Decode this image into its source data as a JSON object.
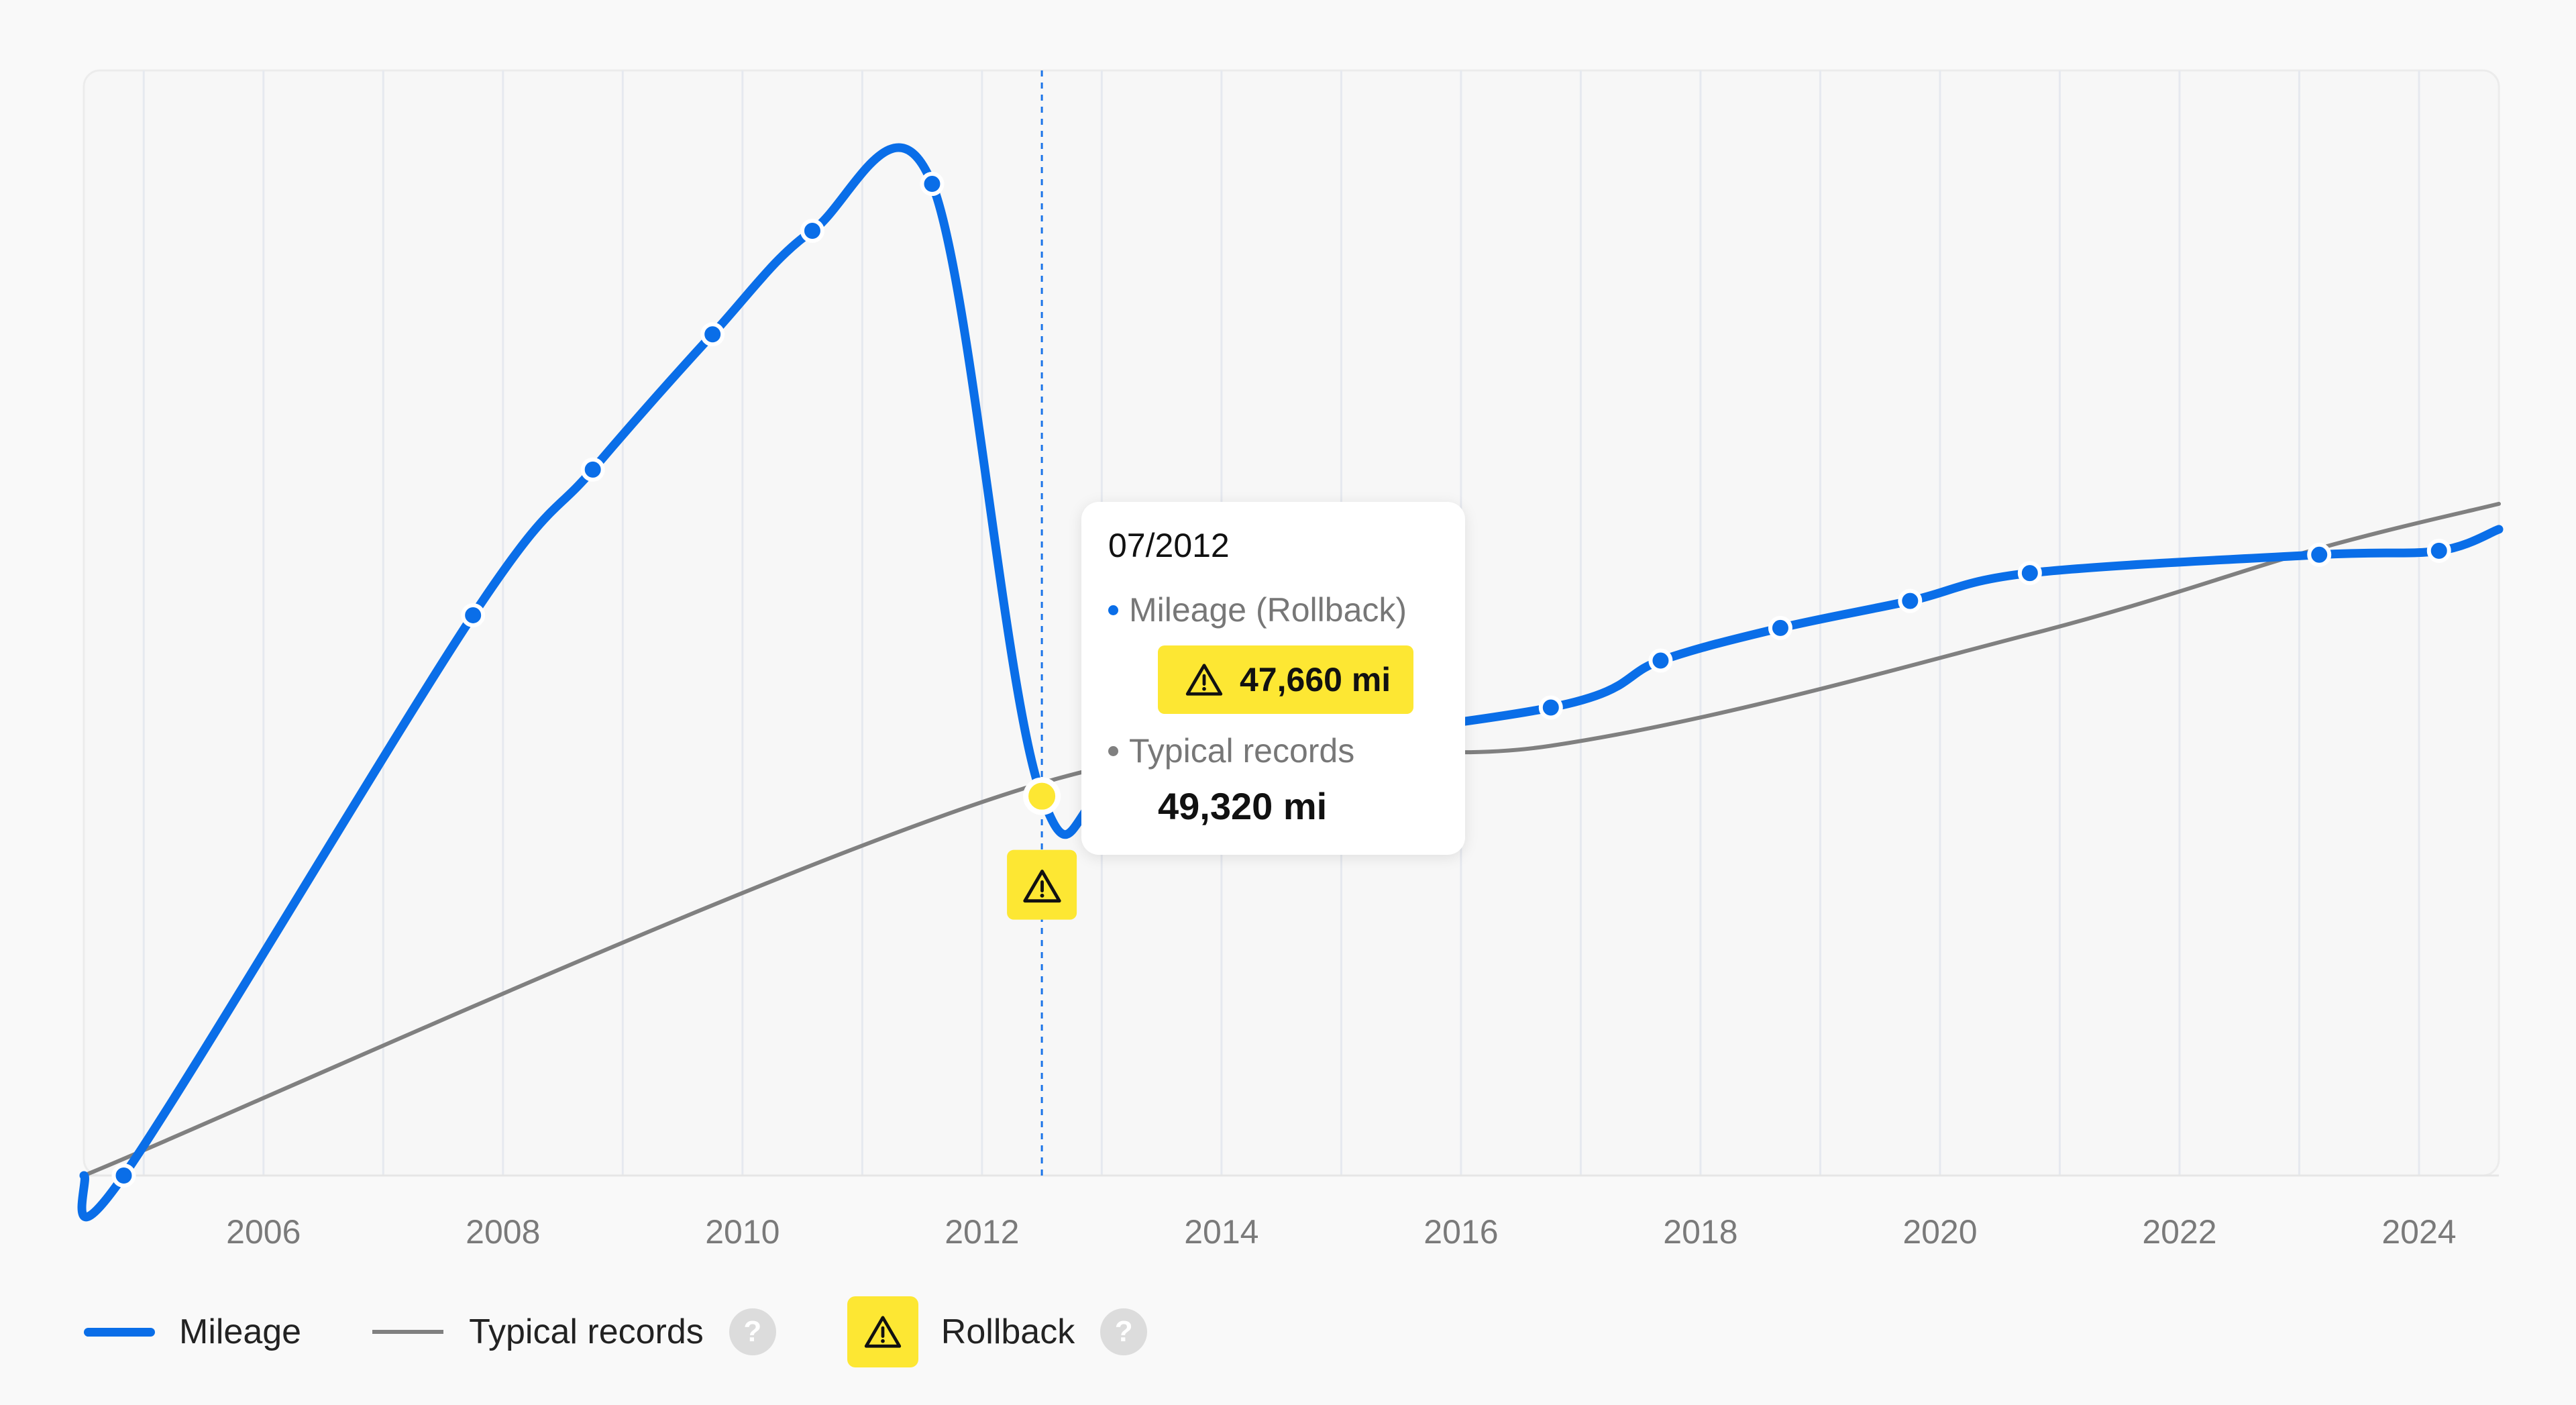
{
  "chart_data": {
    "type": "line",
    "x_axis": {
      "type": "time",
      "range": [
        "2004-07",
        "2024-09"
      ],
      "tick_labels": [
        "2006",
        "2008",
        "2010",
        "2012",
        "2014",
        "2016",
        "2018",
        "2020",
        "2022",
        "2024"
      ],
      "grid": "vertical"
    },
    "y_axis": {
      "visible": false
    },
    "series": [
      {
        "name": "Mileage",
        "color": "#0a6ee8",
        "style": "thick smooth line with point markers",
        "points": [
          {
            "x": "2004-11",
            "y": 0
          },
          {
            "x": "2007-10",
            "y": 70400
          },
          {
            "x": "2008-10",
            "y": 88700
          },
          {
            "x": "2009-10",
            "y": 105700
          },
          {
            "x": "2010-08",
            "y": 118700
          },
          {
            "x": "2011-08",
            "y": 124600
          },
          {
            "x": "2012-07",
            "y": 47660,
            "rollback": true
          },
          {
            "x": "2013-06",
            "y": 51800
          },
          {
            "x": "2016-10",
            "y": 58800
          },
          {
            "x": "2017-09",
            "y": 64700
          },
          {
            "x": "2018-09",
            "y": 68800
          },
          {
            "x": "2019-10",
            "y": 72200
          },
          {
            "x": "2020-10",
            "y": 75700
          },
          {
            "x": "2023-03",
            "y": 78000
          },
          {
            "x": "2024-03",
            "y": 78500
          }
        ]
      },
      {
        "name": "Typical records",
        "color": "#808080",
        "style": "thin line",
        "points": [
          {
            "x": "2004-07",
            "y": 0
          },
          {
            "x": "2012-07",
            "y": 49320
          },
          {
            "x": "2016-10",
            "y": 54000
          },
          {
            "x": "2020-10",
            "y": 68000
          },
          {
            "x": "2023-03",
            "y": 78800
          },
          {
            "x": "2024-09",
            "y": 84400
          }
        ]
      }
    ],
    "rollback_marker": {
      "x": "2012-07",
      "color": "#fde733",
      "crosshair": "dashed vertical line"
    },
    "tooltip": {
      "date": "07/2012",
      "rows": [
        {
          "label": "Mileage (Rollback)",
          "value": "47,660 mi",
          "dot_color": "#0a6ee8",
          "flagged": true
        },
        {
          "label": "Typical records",
          "value": "49,320 mi",
          "dot_color": "#808080",
          "flagged": false
        }
      ]
    },
    "legend": {
      "placement": "bottom-left",
      "items": [
        {
          "label": "Mileage",
          "symbol": "blue-line",
          "help": "?"
        },
        {
          "label": "Typical records",
          "symbol": "gray-line",
          "help": "?"
        },
        {
          "label": "Rollback",
          "symbol": "warning-icon",
          "help": "?"
        }
      ]
    }
  }
}
